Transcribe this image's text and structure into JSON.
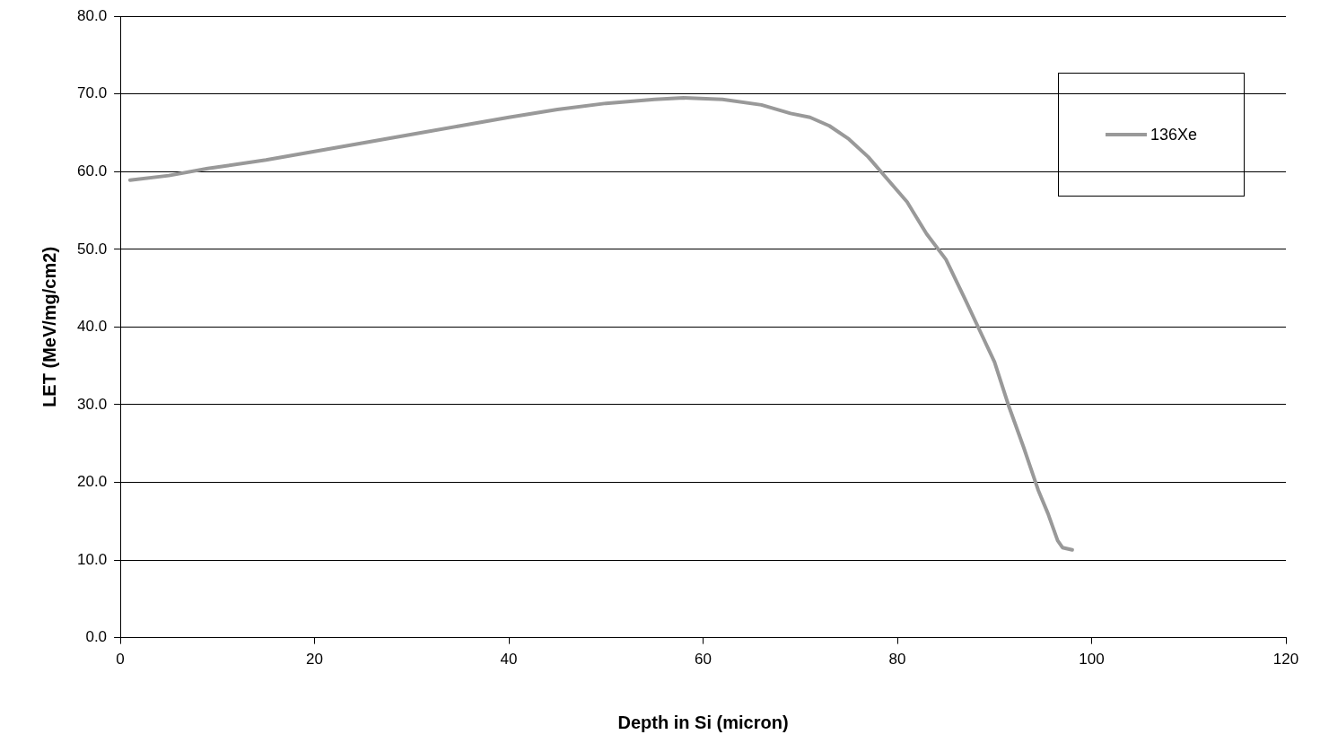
{
  "chart_data": {
    "type": "line",
    "xlabel": "Depth in Si (micron)",
    "ylabel": "LET (MeV/mg/cm2)",
    "xlim": [
      0,
      120
    ],
    "xticks": [
      0,
      20,
      40,
      60,
      80,
      100,
      120
    ],
    "ylim": [
      0,
      80
    ],
    "yticks": [
      {
        "value": 0,
        "label": "0.0"
      },
      {
        "value": 10,
        "label": "10.0"
      },
      {
        "value": 20,
        "label": "20.0"
      },
      {
        "value": 30,
        "label": "30.0"
      },
      {
        "value": 40,
        "label": "40.0"
      },
      {
        "value": 50,
        "label": "50.0"
      },
      {
        "value": 60,
        "label": "60.0"
      },
      {
        "value": 70,
        "label": "70.0"
      },
      {
        "value": 80,
        "label": "80.0"
      }
    ],
    "grid": "y",
    "legend": "top right",
    "marker": "none",
    "line_style": "solid",
    "series": [
      {
        "name": "136Xe",
        "color": "#999999",
        "x": [
          1,
          5,
          9,
          15,
          20,
          25,
          30,
          35,
          40,
          45,
          50,
          55,
          58,
          62,
          66,
          69,
          71,
          73,
          75,
          77,
          79,
          81,
          83,
          85,
          87,
          88.5,
          90,
          91.5,
          93,
          94.5,
          95.5,
          96.5,
          97,
          98
        ],
        "values": [
          58.9,
          59.5,
          60.4,
          61.5,
          62.6,
          63.7,
          64.8,
          65.9,
          67.0,
          68.0,
          68.8,
          69.3,
          69.5,
          69.3,
          68.6,
          67.5,
          67.0,
          65.9,
          64.2,
          61.9,
          59.0,
          56.1,
          52.0,
          48.7,
          43.5,
          39.5,
          35.5,
          29.7,
          24.5,
          19.0,
          16.0,
          12.5,
          11.6,
          11.3
        ]
      }
    ]
  }
}
